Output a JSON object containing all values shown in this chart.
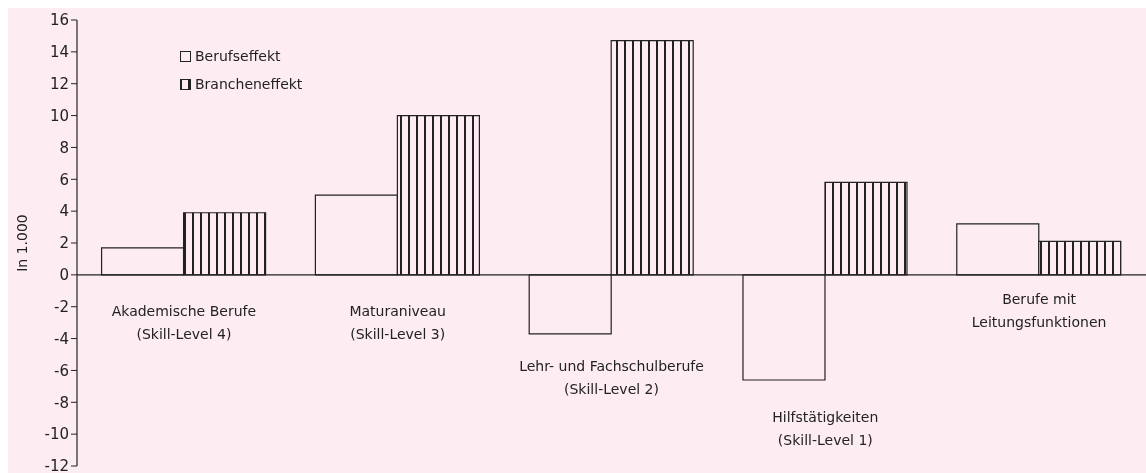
{
  "chart_data": {
    "type": "bar",
    "ylabel": "In 1.000",
    "categories": [
      "Akademische Berufe\n(Skill-Level 4)",
      "Maturaniveau\n(Skill-Level 3)",
      "Lehr- und Fachschulberufe\n(Skill-Level 2)",
      "Hilfstätigkeiten\n(Skill-Level 1)",
      "Berufe mit\nLeitungsfunktionen"
    ],
    "series": [
      {
        "name": "Berufseffekt",
        "color": "#222222",
        "values": [
          1.7,
          5.0,
          -3.7,
          -6.6,
          3.2
        ]
      },
      {
        "name": "Brancheneffekt",
        "color": "#222222",
        "values": [
          3.9,
          10.0,
          14.7,
          5.8,
          2.1
        ]
      }
    ],
    "ylim": [
      -12,
      16
    ],
    "yticks": [
      -12,
      -10,
      -8,
      -6,
      -4,
      -2,
      0,
      2,
      4,
      6,
      8,
      10,
      12,
      14,
      16
    ],
    "legend": "top left"
  }
}
